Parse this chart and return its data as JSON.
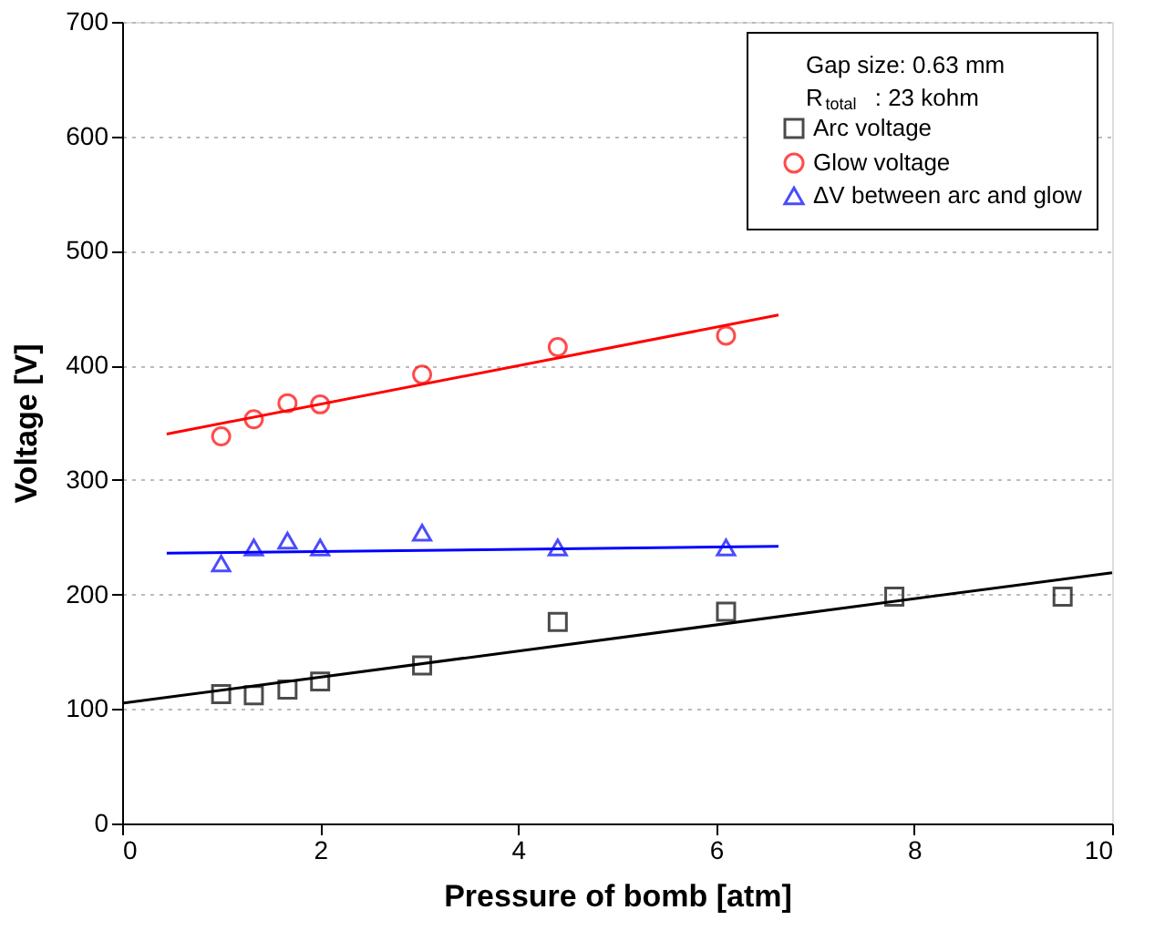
{
  "chart_data": {
    "type": "scatter",
    "xlabel": "Pressure of bomb [atm]",
    "ylabel": "Voltage [V]",
    "legend_title": "Gap size: 0.63 mm\nR$_{total}$: 23 kohm",
    "legend": "top right",
    "grid": "y",
    "xlim": [
      0,
      10
    ],
    "xticks": [
      0,
      2,
      4,
      6,
      8,
      10
    ],
    "ylim": [
      0,
      700
    ],
    "yticks": [
      0,
      100,
      200,
      300,
      400,
      500,
      600,
      700
    ],
    "series": [
      {
        "name": "Arc voltage",
        "color": "#000000",
        "marker": "square",
        "x": [
          1.0,
          1.33,
          1.67,
          2.0,
          3.03,
          4.4,
          6.1,
          7.8,
          9.5
        ],
        "values": [
          113,
          112,
          117,
          124,
          138,
          176,
          185,
          198,
          198
        ]
      },
      {
        "name": "Glow voltage",
        "color": "#ff0000",
        "marker": "circle",
        "x": [
          1.0,
          1.33,
          1.67,
          2.0,
          3.03,
          4.4,
          6.1
        ],
        "values": [
          338,
          353,
          367,
          366,
          392,
          416,
          426
        ]
      },
      {
        "name": "ΔV between arc and glow",
        "color": "#0000ff",
        "marker": "triangle",
        "x": [
          1.0,
          1.33,
          1.67,
          2.0,
          3.03,
          4.4,
          6.1
        ],
        "values": [
          227,
          241,
          247,
          241,
          254,
          241,
          241
        ]
      },
      {
        "color": "#000000",
        "type": "line",
        "marker": "none",
        "line_style": "solid",
        "x": [
          0,
          10
        ],
        "values": [
          105,
          219
        ]
      },
      {
        "color": "#ff0000",
        "type": "line",
        "marker": "none",
        "line_style": "solid",
        "x": [
          0.45,
          6.63
        ],
        "values": [
          340,
          444
        ]
      },
      {
        "color": "#0000ff",
        "type": "line",
        "marker": "none",
        "line_style": "solid",
        "x": [
          0.45,
          6.63
        ],
        "values": [
          236,
          242
        ]
      }
    ]
  }
}
